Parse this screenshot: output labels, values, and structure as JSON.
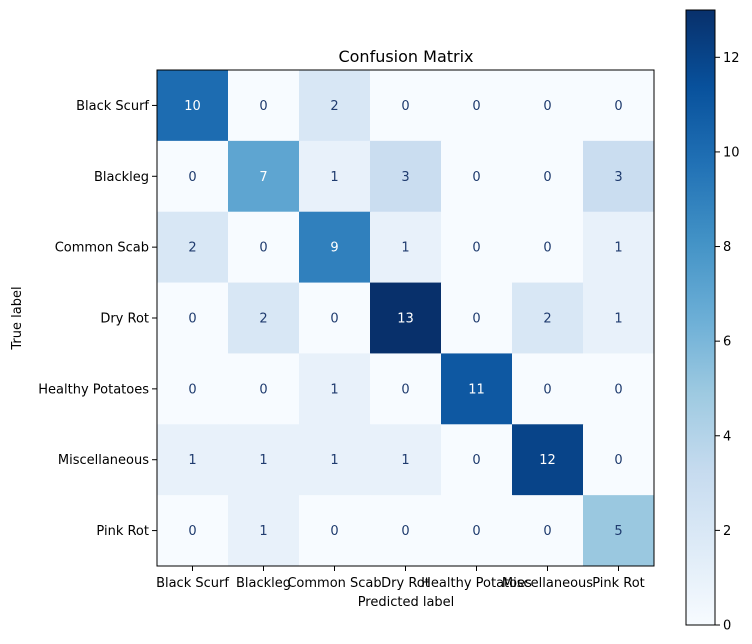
{
  "chart_data": {
    "type": "heatmap",
    "title": "Confusion Matrix",
    "xlabel": "Predicted label",
    "ylabel": "True label",
    "x_categories": [
      "Black Scurf",
      "Blackleg",
      "Common Scab",
      "Dry Rot",
      "Healthy Potatoes",
      "Miscellaneous",
      "Pink Rot"
    ],
    "y_categories": [
      "Black Scurf",
      "Blackleg",
      "Common Scab",
      "Dry Rot",
      "Healthy Potatoes",
      "Miscellaneous",
      "Pink Rot"
    ],
    "values": [
      [
        10,
        0,
        2,
        0,
        0,
        0,
        0
      ],
      [
        0,
        7,
        1,
        3,
        0,
        0,
        3
      ],
      [
        2,
        0,
        9,
        1,
        0,
        0,
        1
      ],
      [
        0,
        2,
        0,
        13,
        0,
        2,
        1
      ],
      [
        0,
        0,
        1,
        0,
        11,
        0,
        0
      ],
      [
        1,
        1,
        1,
        1,
        0,
        12,
        0
      ],
      [
        0,
        1,
        0,
        0,
        0,
        0,
        5
      ]
    ],
    "colormap": "Blues",
    "colorbar": {
      "range": [
        0,
        13
      ],
      "ticks": [
        "0",
        "2",
        "4",
        "6",
        "8",
        "10",
        "12"
      ]
    }
  }
}
